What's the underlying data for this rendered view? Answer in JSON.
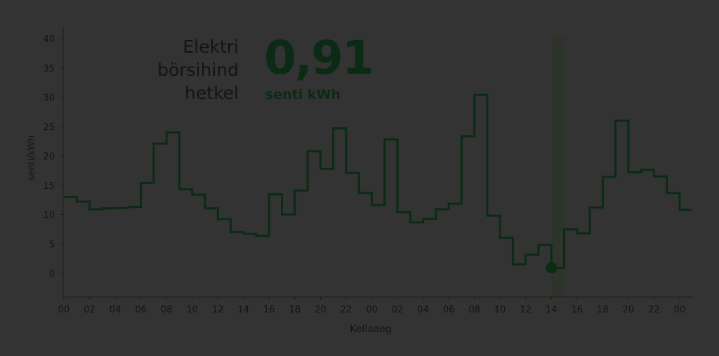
{
  "header": {
    "title_lines": [
      "Elektri",
      "börsihind",
      "hetkel"
    ],
    "current_price": "0,91",
    "current_unit": "senti kWh"
  },
  "colors": {
    "background": "#333333",
    "line": "#0b2b15",
    "highlight": "#2e342c",
    "text": "#141414"
  },
  "chart_data": {
    "type": "line",
    "step": true,
    "xlabel": "Kellaaeg",
    "ylabel": "senti/kWh",
    "ylim": [
      -4,
      42
    ],
    "yticks": [
      0,
      5,
      10,
      15,
      20,
      25,
      30,
      35,
      40
    ],
    "xticks": [
      "00",
      "02",
      "04",
      "06",
      "08",
      "10",
      "12",
      "14",
      "16",
      "18",
      "20",
      "22",
      "00",
      "02",
      "04",
      "06",
      "08",
      "10",
      "12",
      "14",
      "16",
      "18",
      "20",
      "22",
      "00"
    ],
    "x_unit": "hour",
    "grid": false,
    "current_hour_index": 38,
    "current_value": 0.91,
    "series": [
      {
        "values": [
          13.0,
          12.2,
          10.9,
          11.05,
          11.1,
          11.3,
          15.4,
          22.1,
          24.0,
          14.3,
          13.4,
          11.05,
          9.2,
          7.0,
          6.7,
          6.35,
          13.45,
          10.0,
          14.1,
          20.8,
          17.8,
          24.7,
          17.1,
          13.7,
          11.6,
          22.8,
          10.4,
          8.65,
          9.25,
          10.9,
          11.85,
          23.35,
          30.4,
          9.8,
          6.05,
          1.5,
          3.15,
          4.85,
          0.91,
          7.45,
          6.8,
          11.2,
          16.4,
          26.0,
          17.2,
          17.6,
          16.5,
          13.65,
          10.8
        ]
      }
    ]
  }
}
